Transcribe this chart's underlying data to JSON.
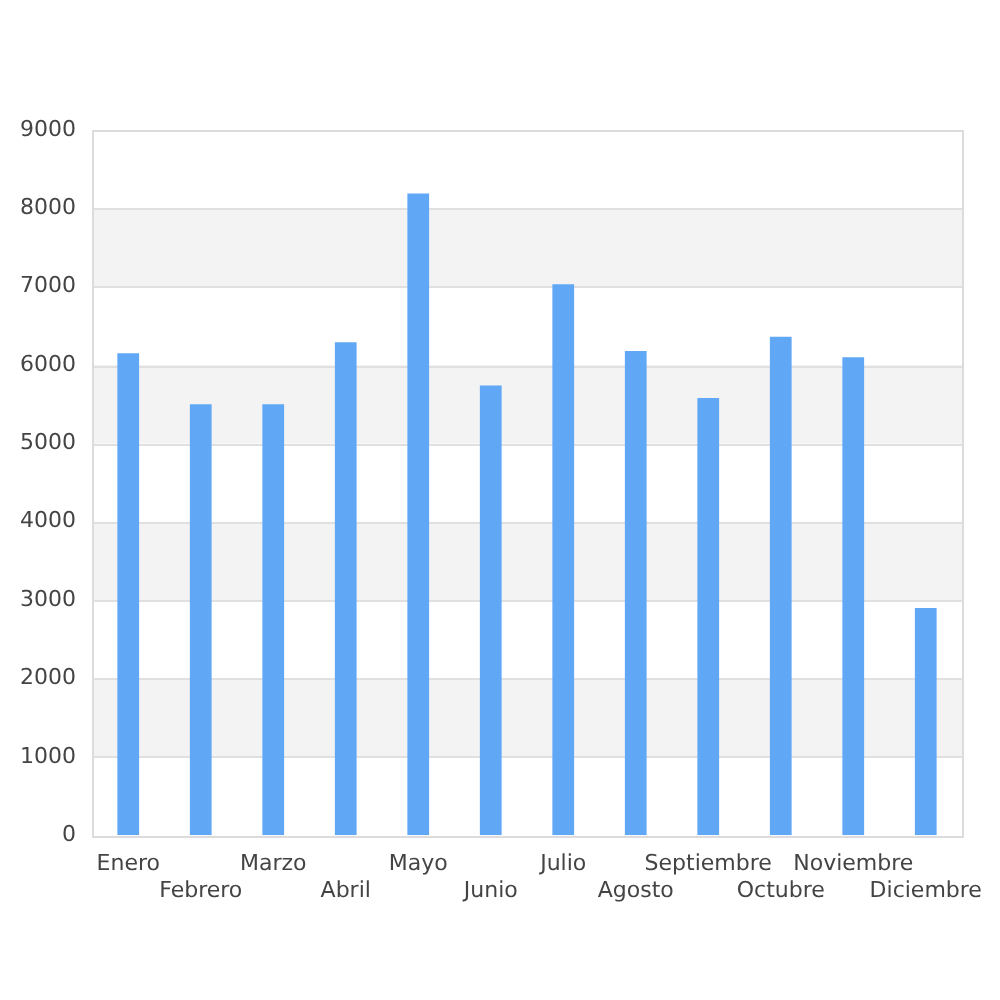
{
  "chart_data": {
    "type": "bar",
    "categories": [
      "Enero",
      "Febrero",
      "Marzo",
      "Abril",
      "Mayo",
      "Junio",
      "Julio",
      "Agosto",
      "Septiembre",
      "Octubre",
      "Noviembre",
      "Diciembre"
    ],
    "values": [
      6150,
      5500,
      5500,
      6290,
      8190,
      5740,
      7030,
      6180,
      5580,
      6360,
      6100,
      2900
    ],
    "color": "#60a8f6",
    "ylim": [
      0,
      9000
    ],
    "yticks": [
      0,
      1000,
      2000,
      3000,
      4000,
      5000,
      6000,
      7000,
      8000,
      9000
    ],
    "grid": "y"
  }
}
